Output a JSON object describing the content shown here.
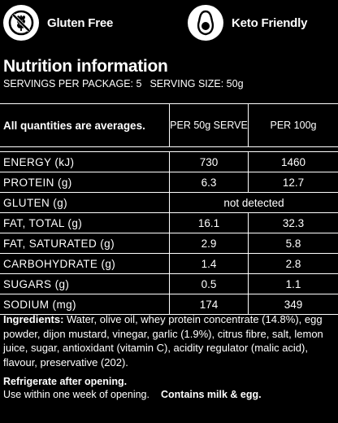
{
  "badges": {
    "gluten_free": {
      "label": "Gluten Free",
      "icon": "crossed-wheat-icon"
    },
    "keto": {
      "label": "Keto Friendly",
      "icon": "avocado-icon"
    }
  },
  "title": "Nutrition information",
  "servings_per_package": "SERVINGS PER PACKAGE: 5",
  "serving_size": "SERVING SIZE: 50g",
  "table": {
    "header": {
      "label": "All quantities are averages.",
      "col1": "PER 50g SERVE",
      "col2": "PER 100g"
    },
    "rows": [
      {
        "label": "ENERGY (kJ)",
        "per_serve": "730",
        "per_100g": "1460"
      },
      {
        "label": "PROTEIN (g)",
        "per_serve": "6.3",
        "per_100g": "12.7"
      },
      {
        "label": "GLUTEN (g)",
        "combined": "not detected"
      },
      {
        "label": "FAT, TOTAL (g)",
        "per_serve": "16.1",
        "per_100g": "32.3"
      },
      {
        "label": "FAT, SATURATED (g)",
        "per_serve": "2.9",
        "per_100g": "5.8"
      },
      {
        "label": "CARBOHYDRATE (g)",
        "per_serve": "1.4",
        "per_100g": "2.8"
      },
      {
        "label": "SUGARS (g)",
        "per_serve": "0.5",
        "per_100g": "1.1"
      },
      {
        "label": "SODIUM (mg)",
        "per_serve": "174",
        "per_100g": "349"
      }
    ]
  },
  "ingredients": {
    "heading": "Ingredients:",
    "text": " Water, olive oil, whey protein concentrate (14.8%), egg powder, dijon mustard, vinegar, garlic (1.9%), citrus fibre, salt, lemon juice, sugar, antioxidant (vitamin C), acidity regulator (malic acid), flavour, preservative (202)."
  },
  "storage": {
    "refrigerate": "Refrigerate after opening.",
    "use_within": "Use within one week of opening.",
    "contains": "Contains milk & egg."
  }
}
